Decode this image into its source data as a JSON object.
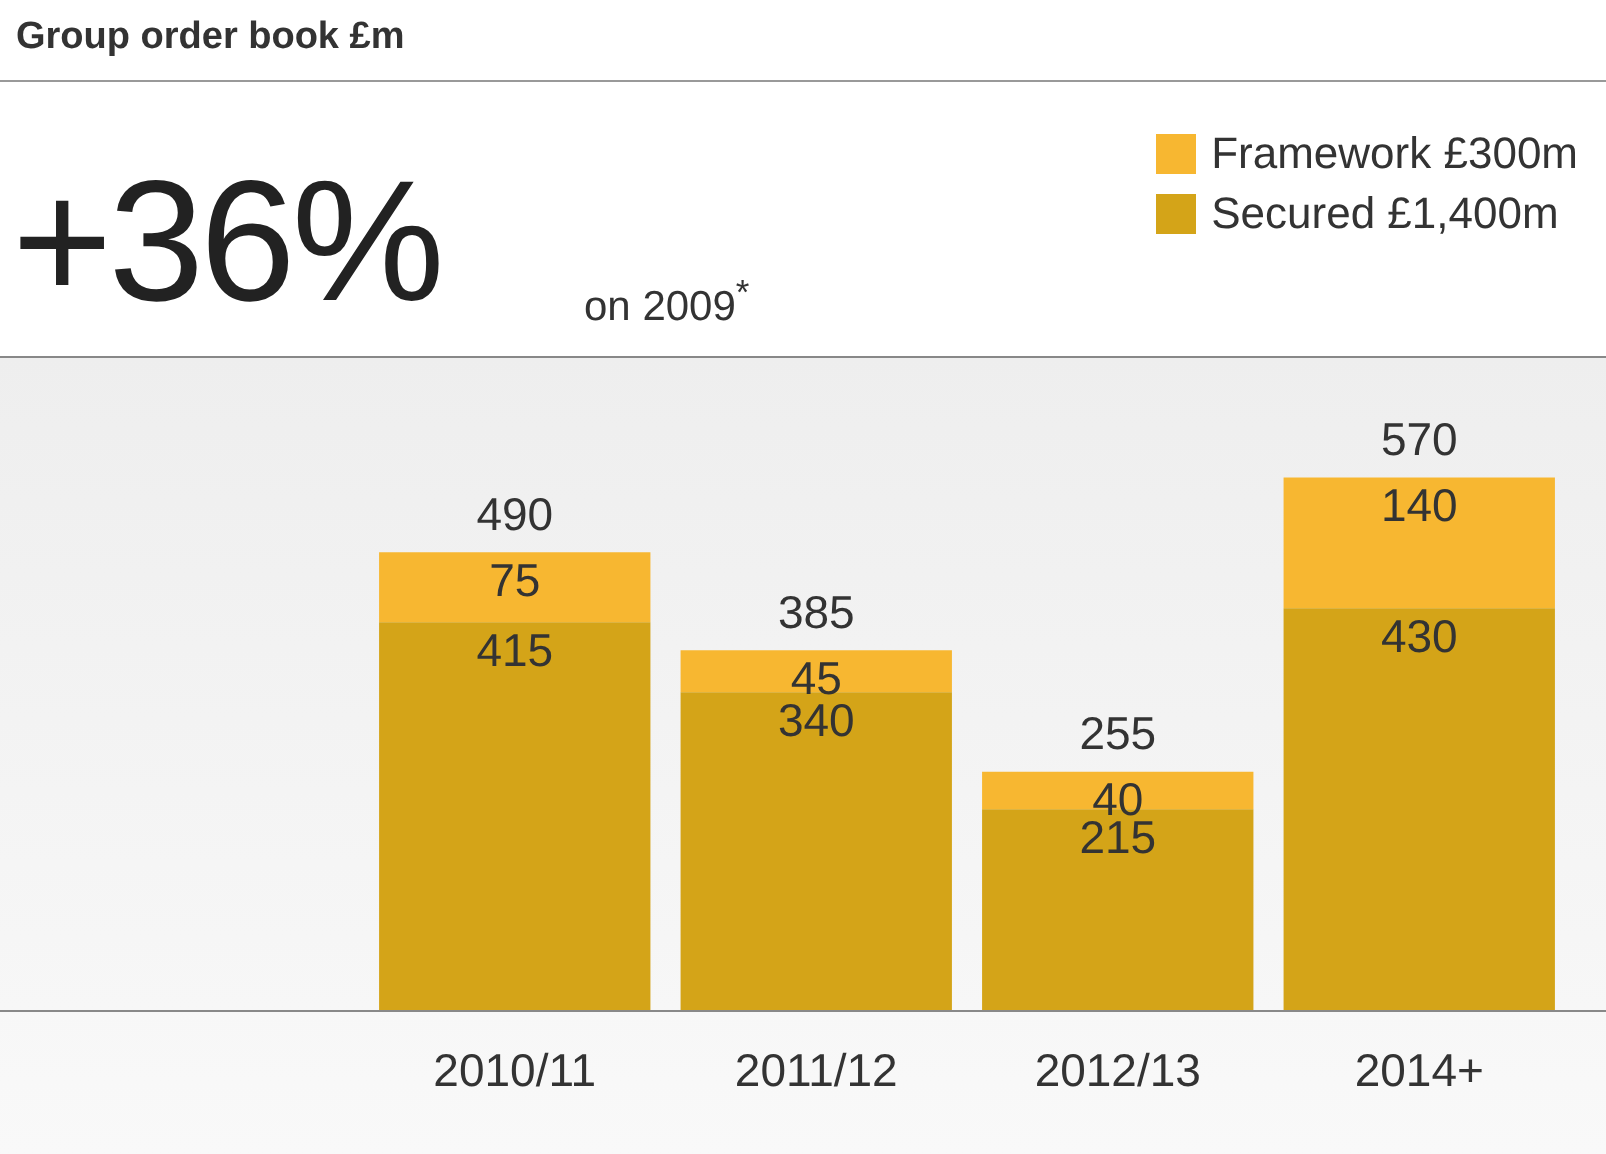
{
  "chart_data": {
    "type": "bar",
    "title": "Group order book £m",
    "annotations": [
      "+36%",
      "on 2009$^{*}$"
    ],
    "categories": [
      "2010/11",
      "2011/12",
      "2012/13",
      "2014+"
    ],
    "stacked": true,
    "series": [
      {
        "name": "Secured £1,400m",
        "color": "#d4a418",
        "values": [
          415,
          340,
          215,
          430
        ]
      },
      {
        "name": "Framework £300m",
        "color": "#f7b731",
        "values": [
          75,
          45,
          40,
          140
        ]
      }
    ],
    "totals": [
      "490",
      "385",
      "255",
      "570"
    ],
    "data_labels": true,
    "legend": "top right",
    "grid": false,
    "tick_labels": "x"
  }
}
